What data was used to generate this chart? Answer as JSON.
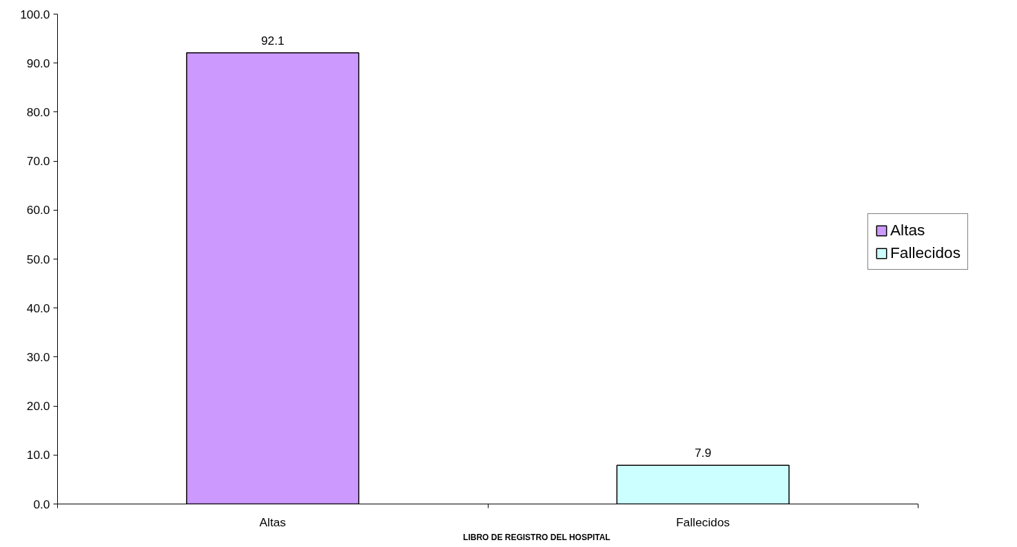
{
  "chart_data": {
    "type": "bar",
    "xlabel": "LIBRO DE REGISTRO DEL HOSPITAL",
    "categories": [
      "Altas",
      "Fallecidos"
    ],
    "series": [
      {
        "name": "Altas",
        "color": "#cc99ff",
        "values": [
          92.1,
          null
        ]
      },
      {
        "name": "Fallecidos",
        "color": "#ccffff",
        "values": [
          null,
          7.9
        ]
      }
    ],
    "ylim": [
      0,
      100
    ],
    "yticks": [
      {
        "value": 0,
        "label": "0.0"
      },
      {
        "value": 10,
        "label": "10.0"
      },
      {
        "value": 20,
        "label": "20.0"
      },
      {
        "value": 30,
        "label": "30.0"
      },
      {
        "value": 40,
        "label": "40.0"
      },
      {
        "value": 50,
        "label": "50.0"
      },
      {
        "value": 60,
        "label": "60.0"
      },
      {
        "value": 70,
        "label": "70.0"
      },
      {
        "value": 80,
        "label": "80.0"
      },
      {
        "value": 90,
        "label": "90.0"
      },
      {
        "value": 100,
        "label": "100.0"
      }
    ],
    "data_labels": true,
    "grid": false,
    "legend": "right"
  }
}
